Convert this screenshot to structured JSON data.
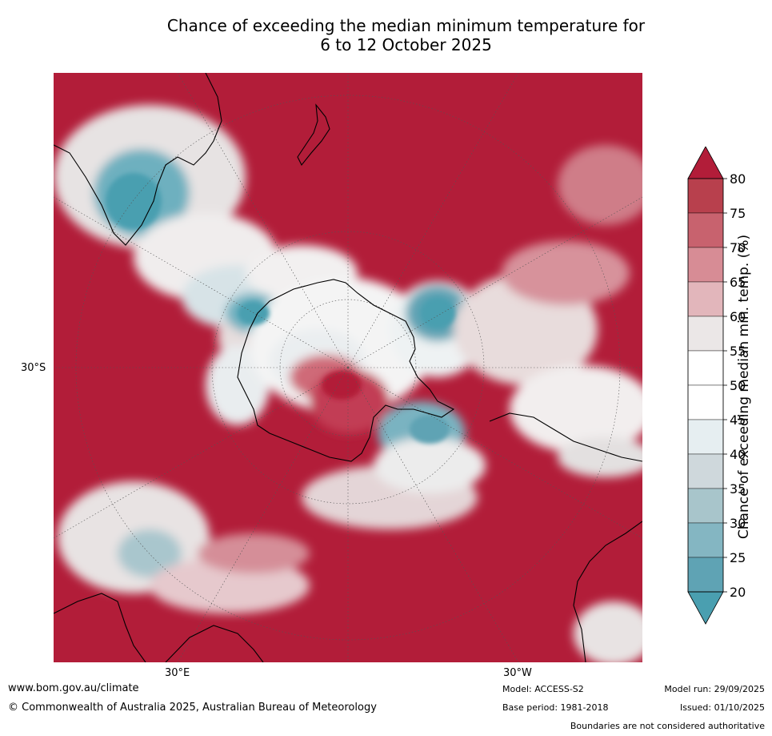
{
  "title_line1": "Chance of exceeding the median minimum temperature for",
  "title_line2": "6 to 12 October 2025",
  "map": {
    "lat_label": "30°S",
    "lon_label_left": "30°E",
    "lon_label_right": "30°W",
    "projection": "south-polar-stereographic",
    "colors": {
      "ocean_base": "#b21d39",
      "coastline": "#000000",
      "graticule": "#555555"
    }
  },
  "colorbar": {
    "title": "Chance of exceeding median min. temp. (%)",
    "ticks": [
      "80",
      "75",
      "70",
      "65",
      "60",
      "55",
      "50",
      "45",
      "40",
      "35",
      "30",
      "25",
      "20"
    ],
    "bands_top_to_bottom": [
      "#b8404d",
      "#c8626e",
      "#d78c95",
      "#e2b6bb",
      "#ebe7e7",
      "#ffffff",
      "#ffffff",
      "#e6eef1",
      "#cfd8dc",
      "#a8c5cb",
      "#84b6c2",
      "#5fa3b4"
    ],
    "extend_top_color": "#b21d39",
    "extend_bottom_color": "#4a9fb0"
  },
  "footer": {
    "url": "www.bom.gov.au/climate",
    "copyright": "© Commonwealth of Australia 2025, Australian Bureau of Meteorology",
    "model": "Model: ACCESS-S2",
    "base_period": "Base period: 1981-2018",
    "model_run": "Model run: 29/09/2025",
    "issued": "Issued: 01/10/2025",
    "disclaimer": "Boundaries are not considered authoritative"
  }
}
